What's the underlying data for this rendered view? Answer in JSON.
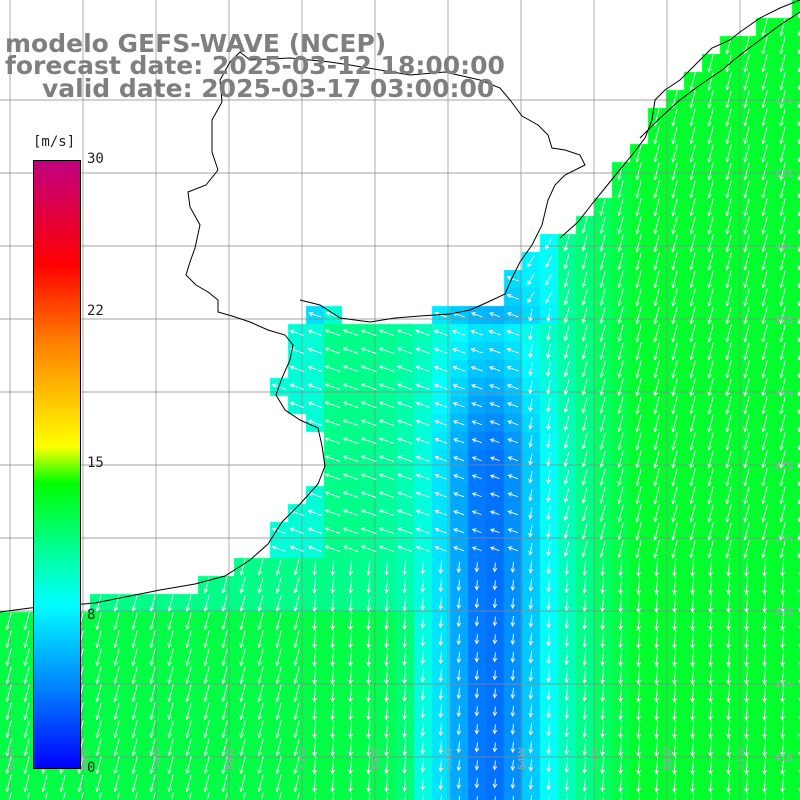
{
  "title": {
    "line1": "modelo GEFS-WAVE (NCEP)",
    "line2": "forecast date: 2025-03-12 18:00:00",
    "line3": "valid date: 2025-03-17 03:00:00"
  },
  "colorbar": {
    "unit": "[m/s]",
    "min": 0,
    "max": 30,
    "ticks": [
      "30",
      "22",
      "15",
      "8",
      "0"
    ],
    "tick_values": [
      30,
      22,
      15,
      8,
      0
    ],
    "colors": [
      "#0000ff",
      "#0080ff",
      "#00ffff",
      "#00ff00",
      "#ffff00",
      "#ff8000",
      "#ff0000",
      "#c00080"
    ]
  },
  "map": {
    "lat_labels": [
      "32S",
      "33S",
      "34S",
      "35S",
      "36S",
      "37S",
      "38S",
      "39S",
      "40S",
      "41S"
    ],
    "lon_labels": [
      "61W",
      "60W",
      "59W",
      "58W",
      "57W",
      "56W",
      "55W",
      "54W",
      "53W",
      "52W",
      "51W"
    ],
    "coast_color": "#000000",
    "grid_color": "#888888",
    "arrow_color": "#ffffff",
    "wind_direction": "from north-east to south-west, turning south in the open ocean"
  }
}
